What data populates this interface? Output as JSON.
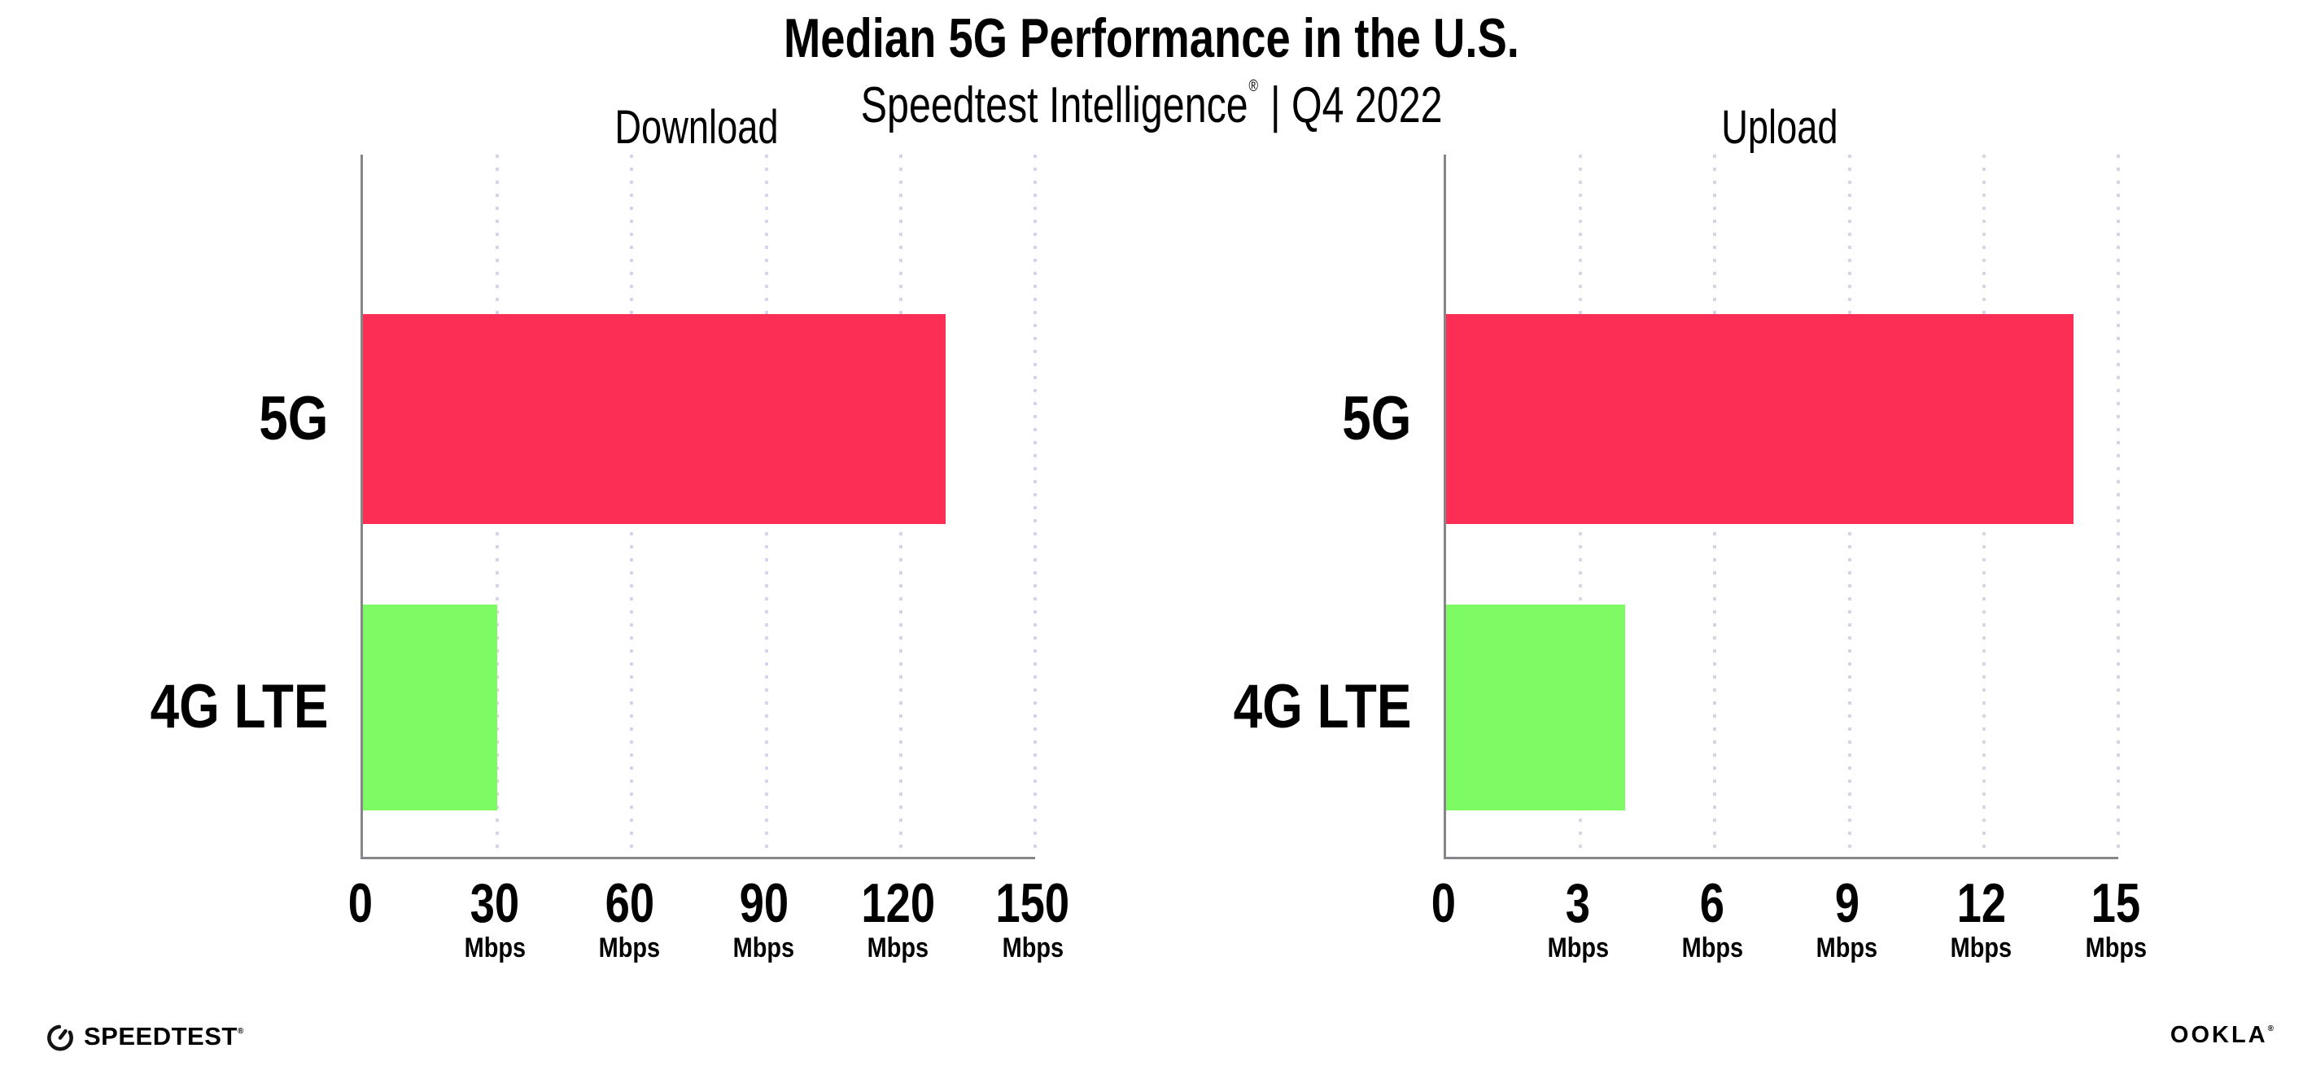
{
  "header": {
    "title": "Median 5G Performance in the U.S.",
    "subtitle_brand": "Speedtest Intelligence",
    "subtitle_reg": "®",
    "subtitle_rest": " | Q4 2022"
  },
  "chart_data": [
    {
      "type": "bar",
      "orientation": "horizontal",
      "title": "Download",
      "categories": [
        "5G",
        "4G LTE"
      ],
      "values": [
        130,
        30
      ],
      "unit": "Mbps",
      "xlim": [
        0,
        150
      ],
      "xticks": [
        0,
        30,
        60,
        90,
        120,
        150
      ],
      "bar_colors": [
        "#FD2E56",
        "#7DFA64"
      ],
      "legend": "none",
      "grid": "dotted vertical gridlines at each tick"
    },
    {
      "type": "bar",
      "orientation": "horizontal",
      "title": "Upload",
      "categories": [
        "5G",
        "4G LTE"
      ],
      "values": [
        14,
        4
      ],
      "unit": "Mbps",
      "xlim": [
        0,
        15
      ],
      "xticks": [
        0,
        3,
        6,
        9,
        12,
        15
      ],
      "bar_colors": [
        "#FD2E56",
        "#7DFA64"
      ],
      "legend": "none",
      "grid": "dotted vertical gridlines at each tick"
    }
  ],
  "colors": {
    "bar_5g": "#FD2E56",
    "bar_4g_lte": "#7DFA64",
    "axis_line": "#85858a",
    "grid_dots": "#d3d6e6",
    "text": "#000000",
    "background": "#ffffff"
  },
  "footer": {
    "speedtest_label": "SPEEDTEST",
    "speedtest_reg": "®",
    "ookla_label": "OOKLA",
    "ookla_reg": "®"
  }
}
